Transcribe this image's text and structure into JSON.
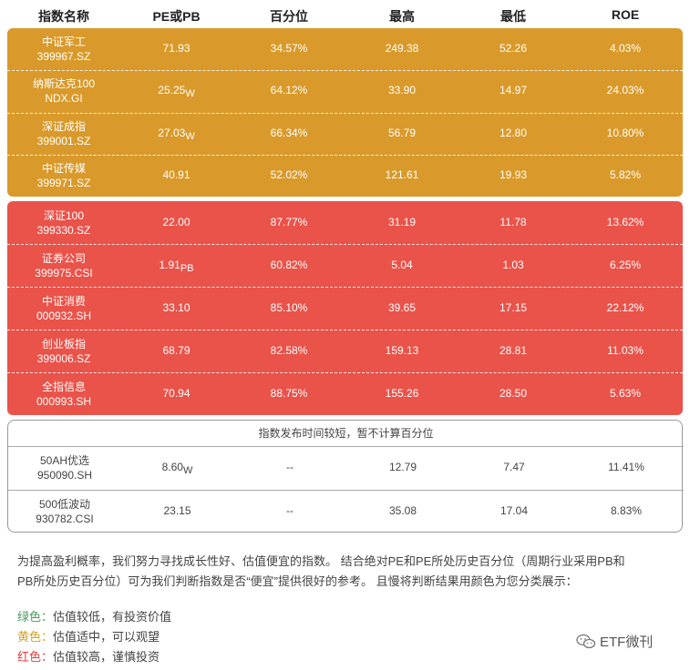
{
  "table": {
    "headers": [
      "指数名称",
      "PE或PB",
      "百分位",
      "最高",
      "最低",
      "ROE"
    ],
    "yellow_rows": [
      {
        "name": "中证军工",
        "code": "399967.SZ",
        "pe": "71.93",
        "suffix": "",
        "pct": "34.57%",
        "high": "249.38",
        "low": "52.26",
        "roe": "4.03%"
      },
      {
        "name": "纳斯达克100",
        "code": "NDX.GI",
        "pe": "25.25",
        "suffix": "W",
        "pct": "64.12%",
        "high": "33.90",
        "low": "14.97",
        "roe": "24.03%"
      },
      {
        "name": "深证成指",
        "code": "399001.SZ",
        "pe": "27.03",
        "suffix": "W",
        "pct": "66.34%",
        "high": "56.79",
        "low": "12.80",
        "roe": "10.80%"
      },
      {
        "name": "中证传媒",
        "code": "399971.SZ",
        "pe": "40.91",
        "suffix": "",
        "pct": "52.02%",
        "high": "121.61",
        "low": "19.93",
        "roe": "5.82%"
      }
    ],
    "red_rows": [
      {
        "name": "深证100",
        "code": "399330.SZ",
        "pe": "22.00",
        "suffix": "",
        "pct": "87.77%",
        "high": "31.19",
        "low": "11.78",
        "roe": "13.62%"
      },
      {
        "name": "证券公司",
        "code": "399975.CSI",
        "pe": "1.91",
        "suffix": "PB",
        "pct": "60.82%",
        "high": "5.04",
        "low": "1.03",
        "roe": "6.25%"
      },
      {
        "name": "中证消费",
        "code": "000932.SH",
        "pe": "33.10",
        "suffix": "",
        "pct": "85.10%",
        "high": "39.65",
        "low": "17.15",
        "roe": "22.12%"
      },
      {
        "name": "创业板指",
        "code": "399006.SZ",
        "pe": "68.79",
        "suffix": "",
        "pct": "82.58%",
        "high": "159.13",
        "low": "28.81",
        "roe": "11.03%"
      },
      {
        "name": "全指信息",
        "code": "000993.SH",
        "pe": "70.94",
        "suffix": "",
        "pct": "88.75%",
        "high": "155.26",
        "low": "28.50",
        "roe": "5.63%"
      }
    ],
    "white_notice": "指数发布时间较短，暂不计算百分位",
    "white_rows": [
      {
        "name": "50AH优选",
        "code": "950090.SH",
        "pe": "8.60",
        "suffix": "W",
        "pct": "--",
        "high": "12.79",
        "low": "7.47",
        "roe": "11.41%"
      },
      {
        "name": "500低波动",
        "code": "930782.CSI",
        "pe": "23.15",
        "suffix": "",
        "pct": "--",
        "high": "35.08",
        "low": "17.04",
        "roe": "8.83%"
      }
    ]
  },
  "description": {
    "line1": "为提高盈利概率，我们努力寻找成长性好、估值便宜的指数。 结合绝对PE和PE所处历史百分位（周期行业采用PB和",
    "line2": "PB所处历史百分位）可为我们判断指数是否“便宜”提供很好的参考。 且慢将判断结果用颜色为您分类展示："
  },
  "legend": [
    {
      "key": "绿色：",
      "text": "估值较低，有投资价值",
      "color": "#4a9a5a"
    },
    {
      "key": "黄色：",
      "text": "估值适中，可以观望",
      "color": "#d9a020"
    },
    {
      "key": "红色：",
      "text": "估值较高，谨慎投资",
      "color": "#e04040"
    }
  ],
  "brand": {
    "name": "ETF微刊",
    "icon": "wechat-icon"
  },
  "colors": {
    "yellow": "#d99a2b",
    "red": "#e9534a"
  }
}
